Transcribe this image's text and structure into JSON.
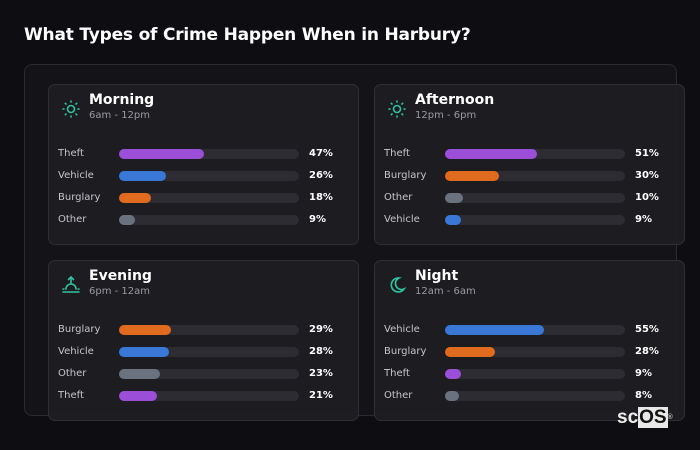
{
  "title": "What Types of Crime Happen When in Harbury?",
  "colors": {
    "Theft": "#9b4fd9",
    "Vehicle": "#3a78d8",
    "Burglary": "#e06a1e",
    "Other": "#6a7280",
    "accent": "#2ec4a0"
  },
  "logo": "scOS®",
  "cards": [
    {
      "name": "Morning",
      "sub": "6am - 12pm",
      "icon": "sun-icon",
      "rows": [
        {
          "label": "Theft",
          "value": 47,
          "text": "47%"
        },
        {
          "label": "Vehicle",
          "value": 26,
          "text": "26%"
        },
        {
          "label": "Burglary",
          "value": 18,
          "text": "18%"
        },
        {
          "label": "Other",
          "value": 9,
          "text": "9%"
        }
      ]
    },
    {
      "name": "Afternoon",
      "sub": "12pm - 6pm",
      "icon": "sun-icon",
      "rows": [
        {
          "label": "Theft",
          "value": 51,
          "text": "51%"
        },
        {
          "label": "Burglary",
          "value": 30,
          "text": "30%"
        },
        {
          "label": "Other",
          "value": 10,
          "text": "10%"
        },
        {
          "label": "Vehicle",
          "value": 9,
          "text": "9%"
        }
      ]
    },
    {
      "name": "Evening",
      "sub": "6pm - 12am",
      "icon": "sunset-icon",
      "rows": [
        {
          "label": "Burglary",
          "value": 29,
          "text": "29%"
        },
        {
          "label": "Vehicle",
          "value": 28,
          "text": "28%"
        },
        {
          "label": "Other",
          "value": 23,
          "text": "23%"
        },
        {
          "label": "Theft",
          "value": 21,
          "text": "21%"
        }
      ]
    },
    {
      "name": "Night",
      "sub": "12am - 6am",
      "icon": "moon-icon",
      "rows": [
        {
          "label": "Vehicle",
          "value": 55,
          "text": "55%"
        },
        {
          "label": "Burglary",
          "value": 28,
          "text": "28%"
        },
        {
          "label": "Theft",
          "value": 9,
          "text": "9%"
        },
        {
          "label": "Other",
          "value": 8,
          "text": "8%"
        }
      ]
    }
  ]
}
